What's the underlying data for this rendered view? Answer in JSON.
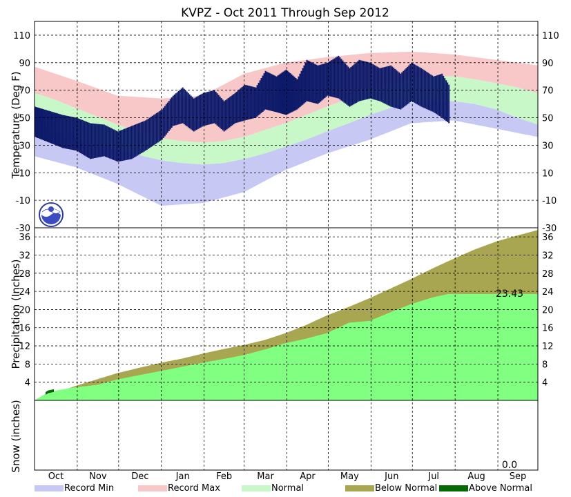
{
  "chart_data": {
    "title": "KVPZ - Oct 2011 Through Sep 2012",
    "months": [
      "Oct",
      "Nov",
      "Dec",
      "Jan",
      "Feb",
      "Mar",
      "Apr",
      "May",
      "Jun",
      "Jul",
      "Aug",
      "Sep"
    ],
    "panels": {
      "temperature": {
        "type": "area",
        "ylabel": "Temperature (Deg F)",
        "ylim": [
          -30,
          120
        ],
        "yticks": [
          -30,
          -10,
          10,
          30,
          50,
          70,
          90,
          110
        ],
        "normal_high": [
          [
            0,
            68
          ],
          [
            15,
            63
          ],
          [
            30,
            57
          ],
          [
            45,
            51
          ],
          [
            60,
            45
          ],
          [
            75,
            40
          ],
          [
            92,
            35
          ],
          [
            107,
            33
          ],
          [
            122,
            32
          ],
          [
            137,
            33
          ],
          [
            152,
            36
          ],
          [
            167,
            41
          ],
          [
            182,
            46
          ],
          [
            197,
            52
          ],
          [
            212,
            58
          ],
          [
            228,
            64
          ],
          [
            243,
            70
          ],
          [
            258,
            74
          ],
          [
            273,
            78
          ],
          [
            289,
            80
          ],
          [
            304,
            80
          ],
          [
            319,
            78
          ],
          [
            335,
            75
          ],
          [
            350,
            72
          ],
          [
            365,
            68
          ]
        ],
        "normal_low": [
          [
            0,
            45
          ],
          [
            15,
            40
          ],
          [
            30,
            35
          ],
          [
            45,
            31
          ],
          [
            60,
            27
          ],
          [
            75,
            23
          ],
          [
            92,
            19
          ],
          [
            107,
            17
          ],
          [
            122,
            16
          ],
          [
            137,
            17
          ],
          [
            152,
            20
          ],
          [
            167,
            24
          ],
          [
            182,
            29
          ],
          [
            197,
            34
          ],
          [
            212,
            40
          ],
          [
            228,
            46
          ],
          [
            243,
            52
          ],
          [
            258,
            57
          ],
          [
            273,
            61
          ],
          [
            289,
            62
          ],
          [
            304,
            62
          ],
          [
            319,
            60
          ],
          [
            335,
            56
          ],
          [
            350,
            50
          ],
          [
            365,
            45
          ]
        ],
        "record_max": [
          [
            0,
            87
          ],
          [
            30,
            77
          ],
          [
            60,
            66
          ],
          [
            92,
            64
          ],
          [
            122,
            66
          ],
          [
            152,
            82
          ],
          [
            182,
            90
          ],
          [
            212,
            94
          ],
          [
            243,
            97
          ],
          [
            273,
            98
          ],
          [
            304,
            96
          ],
          [
            335,
            92
          ],
          [
            365,
            88
          ]
        ],
        "record_min": [
          [
            0,
            22
          ],
          [
            30,
            14
          ],
          [
            60,
            2
          ],
          [
            92,
            -14
          ],
          [
            122,
            -12
          ],
          [
            152,
            -4
          ],
          [
            182,
            12
          ],
          [
            212,
            24
          ],
          [
            243,
            34
          ],
          [
            273,
            46
          ],
          [
            304,
            48
          ],
          [
            335,
            42
          ],
          [
            365,
            36
          ]
        ],
        "observed_high": [
          [
            0,
            58
          ],
          [
            10,
            55
          ],
          [
            20,
            52
          ],
          [
            30,
            50
          ],
          [
            40,
            46
          ],
          [
            50,
            45
          ],
          [
            60,
            40
          ],
          [
            70,
            44
          ],
          [
            80,
            48
          ],
          [
            92,
            56
          ],
          [
            100,
            66
          ],
          [
            107,
            72
          ],
          [
            115,
            64
          ],
          [
            122,
            68
          ],
          [
            130,
            70
          ],
          [
            137,
            62
          ],
          [
            145,
            68
          ],
          [
            152,
            74
          ],
          [
            160,
            72
          ],
          [
            167,
            84
          ],
          [
            175,
            80
          ],
          [
            182,
            85
          ],
          [
            190,
            78
          ],
          [
            197,
            92
          ],
          [
            205,
            88
          ],
          [
            212,
            90
          ],
          [
            220,
            95
          ],
          [
            228,
            86
          ],
          [
            235,
            92
          ],
          [
            243,
            90
          ],
          [
            250,
            86
          ],
          [
            258,
            88
          ],
          [
            265,
            82
          ],
          [
            273,
            90
          ],
          [
            280,
            86
          ],
          [
            289,
            80
          ],
          [
            295,
            82
          ],
          [
            300,
            74
          ]
        ],
        "observed_low": [
          [
            0,
            36
          ],
          [
            10,
            32
          ],
          [
            20,
            28
          ],
          [
            30,
            26
          ],
          [
            40,
            20
          ],
          [
            50,
            22
          ],
          [
            60,
            18
          ],
          [
            70,
            20
          ],
          [
            80,
            26
          ],
          [
            92,
            34
          ],
          [
            100,
            44
          ],
          [
            107,
            46
          ],
          [
            115,
            40
          ],
          [
            122,
            44
          ],
          [
            130,
            46
          ],
          [
            137,
            40
          ],
          [
            145,
            46
          ],
          [
            152,
            48
          ],
          [
            160,
            50
          ],
          [
            167,
            56
          ],
          [
            175,
            54
          ],
          [
            182,
            52
          ],
          [
            190,
            56
          ],
          [
            197,
            62
          ],
          [
            205,
            60
          ],
          [
            212,
            66
          ],
          [
            220,
            64
          ],
          [
            228,
            58
          ],
          [
            235,
            62
          ],
          [
            243,
            64
          ],
          [
            250,
            62
          ],
          [
            258,
            58
          ],
          [
            265,
            56
          ],
          [
            273,
            62
          ],
          [
            280,
            58
          ],
          [
            289,
            54
          ],
          [
            295,
            50
          ],
          [
            300,
            46
          ]
        ]
      },
      "precipitation": {
        "type": "area",
        "ylabel": "Precipitation (Inches)",
        "ylim": [
          0,
          38
        ],
        "yticks": [
          4,
          8,
          12,
          16,
          20,
          24,
          28,
          32,
          36
        ],
        "normal_cumulative": [
          [
            0,
            0
          ],
          [
            15,
            1.6
          ],
          [
            30,
            3.2
          ],
          [
            45,
            4.6
          ],
          [
            60,
            6.0
          ],
          [
            75,
            7.1
          ],
          [
            92,
            8.3
          ],
          [
            107,
            9.2
          ],
          [
            122,
            10.3
          ],
          [
            137,
            11.3
          ],
          [
            152,
            12.2
          ],
          [
            167,
            13.3
          ],
          [
            182,
            14.8
          ],
          [
            197,
            16.6
          ],
          [
            212,
            18.7
          ],
          [
            228,
            20.6
          ],
          [
            243,
            22.5
          ],
          [
            258,
            24.6
          ],
          [
            273,
            26.7
          ],
          [
            289,
            29.1
          ],
          [
            304,
            31.2
          ],
          [
            319,
            33.2
          ],
          [
            335,
            35.0
          ],
          [
            350,
            36.3
          ],
          [
            365,
            37.5
          ]
        ],
        "observed_cumulative": [
          [
            0,
            0
          ],
          [
            10,
            1.8
          ],
          [
            18,
            2.3
          ],
          [
            30,
            2.9
          ],
          [
            45,
            3.4
          ],
          [
            60,
            4.6
          ],
          [
            75,
            5.5
          ],
          [
            92,
            6.5
          ],
          [
            107,
            7.4
          ],
          [
            122,
            8.3
          ],
          [
            137,
            9.1
          ],
          [
            152,
            10.0
          ],
          [
            167,
            11.2
          ],
          [
            182,
            12.6
          ],
          [
            197,
            13.6
          ],
          [
            212,
            14.8
          ],
          [
            228,
            17.1
          ],
          [
            243,
            17.5
          ],
          [
            258,
            19.4
          ],
          [
            273,
            21.2
          ],
          [
            289,
            22.7
          ],
          [
            300,
            23.43
          ],
          [
            365,
            23.43
          ]
        ],
        "annotation": "23.43"
      },
      "snow": {
        "ylabel": "Snow (inches)",
        "annotation": "0.0"
      }
    },
    "legend": [
      "Record Min",
      "Record Max",
      "Normal",
      "Below Normal",
      "Above Normal"
    ],
    "colors": {
      "record_min": "#c8c8f5",
      "record_max": "#f8c8c8",
      "normal": "#c8f8c8",
      "below_normal": "#a8a650",
      "above_normal": "#056a05",
      "observed_precip": "#80ff80",
      "observed_temp": "#0d1a6a"
    }
  }
}
